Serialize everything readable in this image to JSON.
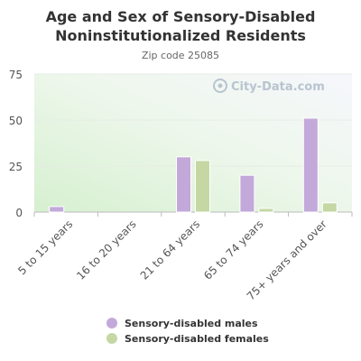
{
  "chart_data": {
    "type": "bar",
    "title": "Age and Sex of Sensory-Disabled Noninstitutionalized Residents",
    "subtitle": "Zip code 25085",
    "watermark": "City-Data.com",
    "categories": [
      "5 to 15 years",
      "16 to 20 years",
      "21 to 64 years",
      "65 to 74 years",
      "75+ years and over"
    ],
    "series": [
      {
        "name": "Sensory-disabled males",
        "color": "#c3a9d9",
        "values": [
          3,
          0,
          30,
          20,
          51
        ]
      },
      {
        "name": "Sensory-disabled females",
        "color": "#c5d8a4",
        "values": [
          0,
          0,
          28,
          2,
          5
        ]
      }
    ],
    "yticks": [
      0,
      25,
      50,
      75
    ],
    "ylim": [
      0,
      75
    ],
    "grid": true,
    "legend": "bottom"
  }
}
